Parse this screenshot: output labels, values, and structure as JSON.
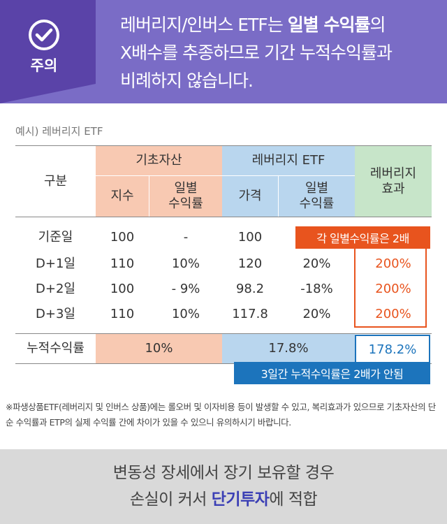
{
  "header": {
    "caution_label": "주의",
    "line1_pre": "레버리지/인버스 ETF는 ",
    "line1_bold": "일별 수익률",
    "line1_post": "의",
    "line2": "X배수를 추종하므로 기간 누적수익률과",
    "line3": "비례하지 않습니다.",
    "icon": "check-circle-icon",
    "colors": {
      "left": "#5a43a8",
      "right": "#7a6cc6"
    }
  },
  "example_label": "예시) 레버리지 ETF",
  "table": {
    "headers": {
      "category": "구분",
      "base_asset": "기초자산",
      "leveraged_etf": "레버리지 ETF",
      "leverage_effect": "레버리지\n효과",
      "index": "지수",
      "daily_return_base": "일별\n수익률",
      "price": "가격",
      "daily_return_etf": "일별\n수익률"
    },
    "rows": [
      {
        "label": "기준일",
        "index": "100",
        "index_return": "-",
        "price": "100",
        "price_return": "",
        "effect": ""
      },
      {
        "label": "D+1일",
        "index": "110",
        "index_return": "10%",
        "price": "120",
        "price_return": "20%",
        "effect": "200%"
      },
      {
        "label": "D+2일",
        "index": "100",
        "index_return": "- 9%",
        "price": "98.2",
        "price_return": "-18%",
        "effect": "200%"
      },
      {
        "label": "D+3일",
        "index": "110",
        "index_return": "10%",
        "price": "117.8",
        "price_return": "20%",
        "effect": "200%"
      }
    ],
    "cumulative": {
      "label": "누적수익률",
      "base": "10%",
      "etf": "17.8%",
      "effect": "178.2%"
    },
    "colors": {
      "peach": "#f8c9b2",
      "blue": "#b9d6ee",
      "green": "#c7e5c9",
      "orange": "#e8541e",
      "navy": "#1c74bc"
    }
  },
  "callouts": {
    "daily_2x": "각 일별수익률은 2배",
    "cumulative_not_2x": "3일간 누적수익률은 2배가 안됨"
  },
  "footnote": "※파생상품ETF(레버리지 및 인버스 상품)에는 롤오버 및 이자비용 등이 발생할 수 있고, 복리효과가 있으므로 기초자산의 단순 수익률과 ETP의 실제 수익률 간에 차이가 있을 수 있으니 유의하시기 바랍니다.",
  "footer": {
    "line1": "변동성 장세에서 장기 보유할 경우",
    "line2_pre": "손실이 커서 ",
    "line2_highlight": "단기투자",
    "line2_post": "에 적합"
  }
}
